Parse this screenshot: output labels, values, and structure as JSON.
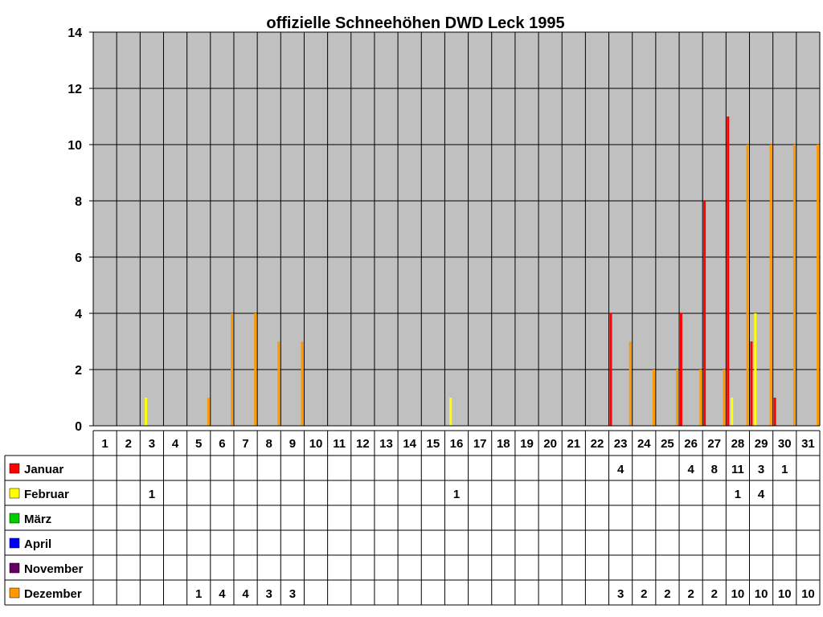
{
  "chart_data": {
    "type": "bar",
    "title": "offizielle Schneehöhen DWD Leck 1995",
    "xlabel": "",
    "ylabel": "",
    "ylim": [
      0,
      14
    ],
    "y_ticks": [
      0,
      2,
      4,
      6,
      8,
      10,
      12,
      14
    ],
    "grid": true,
    "plot_background": "#C0C0C0",
    "data_table": true,
    "categories": [
      "1",
      "2",
      "3",
      "4",
      "5",
      "6",
      "7",
      "8",
      "9",
      "10",
      "11",
      "12",
      "13",
      "14",
      "15",
      "16",
      "17",
      "18",
      "19",
      "20",
      "21",
      "22",
      "23",
      "24",
      "25",
      "26",
      "27",
      "28",
      "29",
      "30",
      "31"
    ],
    "series": [
      {
        "name": "Januar",
        "color": "#FF0000",
        "values": [
          null,
          null,
          null,
          null,
          null,
          null,
          null,
          null,
          null,
          null,
          null,
          null,
          null,
          null,
          null,
          null,
          null,
          null,
          null,
          null,
          null,
          null,
          4,
          null,
          null,
          4,
          8,
          11,
          3,
          1,
          null
        ]
      },
      {
        "name": "Februar",
        "color": "#FFFF00",
        "values": [
          null,
          null,
          1,
          null,
          null,
          null,
          null,
          null,
          null,
          null,
          null,
          null,
          null,
          null,
          null,
          1,
          null,
          null,
          null,
          null,
          null,
          null,
          null,
          null,
          null,
          null,
          null,
          1,
          4,
          null,
          null
        ]
      },
      {
        "name": "März",
        "color": "#00CC00",
        "values": [
          null,
          null,
          null,
          null,
          null,
          null,
          null,
          null,
          null,
          null,
          null,
          null,
          null,
          null,
          null,
          null,
          null,
          null,
          null,
          null,
          null,
          null,
          null,
          null,
          null,
          null,
          null,
          null,
          null,
          null,
          null
        ]
      },
      {
        "name": "April",
        "color": "#0000FF",
        "values": [
          null,
          null,
          null,
          null,
          null,
          null,
          null,
          null,
          null,
          null,
          null,
          null,
          null,
          null,
          null,
          null,
          null,
          null,
          null,
          null,
          null,
          null,
          null,
          null,
          null,
          null,
          null,
          null,
          null,
          null,
          null
        ]
      },
      {
        "name": "November",
        "color": "#660066",
        "values": [
          null,
          null,
          null,
          null,
          null,
          null,
          null,
          null,
          null,
          null,
          null,
          null,
          null,
          null,
          null,
          null,
          null,
          null,
          null,
          null,
          null,
          null,
          null,
          null,
          null,
          null,
          null,
          null,
          null,
          null,
          null
        ]
      },
      {
        "name": "Dezember",
        "color": "#FF9900",
        "values": [
          null,
          null,
          null,
          null,
          1,
          4,
          4,
          3,
          3,
          null,
          null,
          null,
          null,
          null,
          null,
          null,
          null,
          null,
          null,
          null,
          null,
          null,
          3,
          2,
          2,
          2,
          2,
          10,
          10,
          10,
          10
        ]
      }
    ]
  }
}
